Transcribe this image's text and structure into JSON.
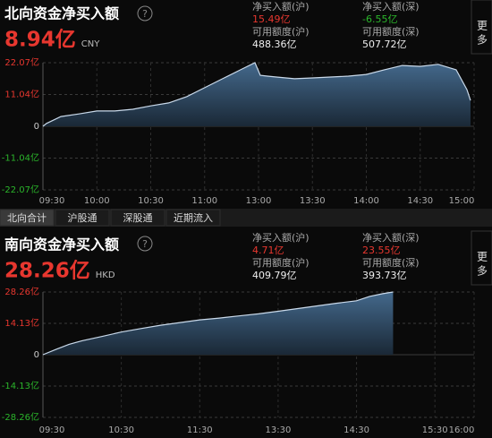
{
  "panels": [
    {
      "title": "北向资金净买入额",
      "amount": "8.94亿",
      "currency": "CNY",
      "more": "更多",
      "stats": [
        [
          "净买入额(沪)",
          "15.49亿",
          "可用额度(沪)",
          "488.36亿"
        ],
        [
          "净买入额(深)",
          "-6.55亿",
          "可用额度(深)",
          "507.72亿"
        ]
      ]
    },
    {
      "title": "南向资金净买入额",
      "amount": "28.26亿",
      "currency": "HKD",
      "more": "更多",
      "stats": [
        [
          "净买入额(沪)",
          "4.71亿",
          "可用额度(沪)",
          "409.79亿"
        ],
        [
          "净买入额(深)",
          "23.55亿",
          "可用额度(深)",
          "393.73亿"
        ]
      ]
    }
  ],
  "tabs": [
    "北向合计",
    "沪股通",
    "深股通",
    "近期流入"
  ],
  "chart_data": [
    {
      "type": "area",
      "color": "#c9d9ea",
      "grid": true,
      "x": [
        0,
        2,
        5,
        10,
        20,
        30,
        40,
        50,
        60,
        70,
        80,
        90,
        100,
        110,
        118,
        121,
        125,
        130,
        140,
        150,
        160,
        170,
        180,
        190,
        200,
        210,
        220,
        230,
        236,
        238
      ],
      "values": [
        0,
        1,
        1.9,
        3.4,
        4.3,
        5.3,
        5.3,
        5.9,
        7.1,
        8.1,
        10.3,
        13.4,
        16.5,
        19.6,
        22.07,
        17.7,
        17.4,
        17.1,
        16.5,
        16.8,
        17.1,
        17.4,
        18.0,
        19.6,
        21.1,
        20.8,
        21.5,
        19.6,
        12.7,
        8.94
      ],
      "xlim": [
        0,
        240
      ],
      "ylim": [
        -22.07,
        22.07
      ],
      "xticks": [
        {
          "value": 0,
          "label": "09:30"
        },
        {
          "value": 30,
          "label": "10:00"
        },
        {
          "value": 60,
          "label": "10:30"
        },
        {
          "value": 90,
          "label": "11:00"
        },
        {
          "value": 120,
          "label": "13:00"
        },
        {
          "value": 150,
          "label": "13:30"
        },
        {
          "value": 180,
          "label": "14:00"
        },
        {
          "value": 210,
          "label": "14:30"
        },
        {
          "value": 240,
          "label": "15:00"
        }
      ],
      "yticks": [
        {
          "value": 22.07,
          "label": "22.07亿"
        },
        {
          "value": 11.04,
          "label": "11.04亿"
        },
        0,
        {
          "value": -11.04,
          "label": "-11.04亿"
        },
        {
          "value": -22.07,
          "label": "-22.07亿"
        }
      ]
    },
    {
      "type": "area",
      "color": "#c9d9ea",
      "grid": true,
      "x": [
        0,
        10,
        20,
        30,
        45,
        60,
        75,
        90,
        105,
        120,
        135,
        150,
        165,
        180,
        195,
        210,
        225,
        240,
        250,
        260,
        268
      ],
      "values": [
        0,
        2.4,
        4.7,
        6.3,
        8.2,
        10.2,
        11.8,
        13.3,
        14.5,
        15.7,
        16.5,
        17.5,
        18.4,
        19.6,
        20.8,
        22.0,
        23.2,
        24.3,
        26.3,
        27.5,
        28.26
      ],
      "xlim": [
        0,
        330
      ],
      "ylim": [
        -28.26,
        28.26
      ],
      "xticks": [
        {
          "value": 0,
          "label": "09:30"
        },
        {
          "value": 60,
          "label": "10:30"
        },
        {
          "value": 120,
          "label": "11:30"
        },
        {
          "value": 180,
          "label": "13:30"
        },
        {
          "value": 240,
          "label": "14:30"
        },
        {
          "value": 300,
          "label": "15:30"
        },
        {
          "value": 330,
          "label": "16:00"
        }
      ],
      "yticks": [
        {
          "value": 28.26,
          "label": "28.26亿"
        },
        {
          "value": 14.13,
          "label": "14.13亿"
        },
        0,
        {
          "value": -14.13,
          "label": "-14.13亿"
        },
        {
          "value": -28.26,
          "label": "-28.26亿"
        }
      ]
    }
  ]
}
